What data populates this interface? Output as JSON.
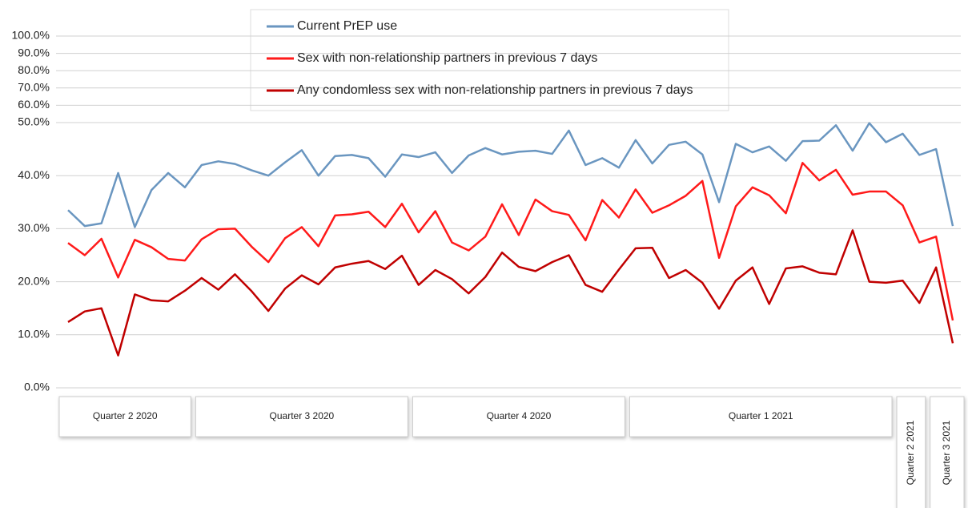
{
  "chart_data": {
    "type": "line",
    "categories": [
      null,
      null,
      null,
      null,
      null,
      null,
      null,
      null,
      null,
      null,
      null,
      null,
      null,
      null,
      null,
      null,
      null,
      null,
      null,
      null,
      null,
      null,
      null,
      null,
      null,
      null,
      null,
      null,
      null,
      null,
      null,
      null,
      null,
      null,
      null,
      null,
      null,
      null,
      null,
      null,
      null,
      null,
      null,
      null,
      null,
      null,
      null,
      null,
      null,
      null,
      null,
      null,
      null,
      null
    ],
    "groups": [
      "Quarter 2 2020",
      "Quarter 3 2020",
      "Quarter 4 2020",
      "Quarter 1 2021",
      "Quarter 2 2021",
      "Quarter 3 2021"
    ],
    "series": [
      {
        "name": "Current PrEP use",
        "color": "#6a96c0",
        "values": [
          33.5,
          30.5,
          31,
          40.5,
          30.3,
          37.3,
          40.5,
          37.8,
          42,
          42.7,
          42.2,
          41,
          40,
          42.5,
          44.8,
          40,
          43.7,
          43.9,
          43.3,
          39.8,
          44,
          43.5,
          44.4,
          40.5,
          43.8,
          45.2,
          44,
          44.5,
          44.7,
          44.1,
          48.5,
          42,
          43.3,
          41.5,
          46.7,
          42.3,
          45.8,
          46.4,
          44,
          35,
          46,
          44.4,
          45.5,
          42.8,
          46.5,
          46.6,
          49.5,
          44.7,
          49.9,
          46.3,
          47.9,
          43.9,
          45,
          30.5
        ]
      },
      {
        "name": "Sex with non-relationship partners in previous 7 days",
        "color": "#ff1a1a",
        "values": [
          27.3,
          25,
          28.1,
          20.8,
          27.9,
          26.5,
          24.3,
          24,
          28,
          29.9,
          30,
          26.6,
          23.7,
          28.2,
          30.3,
          26.7,
          32.5,
          32.7,
          33.2,
          30.3,
          34.7,
          29.3,
          33.3,
          27.4,
          25.9,
          28.5,
          34.6,
          28.8,
          35.5,
          33.3,
          32.6,
          27.8,
          35.4,
          32.1,
          37.4,
          33,
          34.4,
          36.2,
          39,
          24.5,
          34.2,
          37.8,
          36.3,
          32.9,
          42.4,
          39.1,
          41.1,
          36.4,
          37,
          37,
          34.4,
          27.4,
          28.5,
          12.7
        ]
      },
      {
        "name": "Any condomless sex with non-relationship partners in previous 7 days",
        "color": "#c00000",
        "values": [
          12.4,
          14.4,
          15,
          6.1,
          17.6,
          16.5,
          16.3,
          18.3,
          20.7,
          18.5,
          21.4,
          18.2,
          14.5,
          18.7,
          21.2,
          19.5,
          22.7,
          23.4,
          23.9,
          22.4,
          24.9,
          19.4,
          22.2,
          20.5,
          17.8,
          20.9,
          25.5,
          22.8,
          22,
          23.7,
          25,
          19.4,
          18.1,
          22.3,
          26.3,
          26.4,
          20.7,
          22.2,
          19.8,
          14.9,
          20.2,
          22.7,
          15.8,
          22.5,
          22.9,
          21.7,
          21.4,
          29.7,
          20,
          19.8,
          20.2,
          16,
          22.7,
          8.4
        ]
      }
    ],
    "ylim": [
      0,
      100
    ],
    "scale_break": 50,
    "yticks": [
      {
        "value": 0,
        "label": "0.0%"
      },
      {
        "value": 10,
        "label": "10.0%"
      },
      {
        "value": 20,
        "label": "20.0%"
      },
      {
        "value": 30,
        "label": "30.0%"
      },
      {
        "value": 40,
        "label": "40.0%"
      },
      {
        "value": 50,
        "label": "50.0%"
      },
      {
        "value": 60,
        "label": "60.0%"
      },
      {
        "value": 70,
        "label": "70.0%"
      },
      {
        "value": 80,
        "label": "80.0%"
      },
      {
        "value": 90,
        "label": "90.0%"
      },
      {
        "value": 100,
        "label": "100.0%"
      }
    ],
    "grid": true,
    "legend": "top"
  }
}
